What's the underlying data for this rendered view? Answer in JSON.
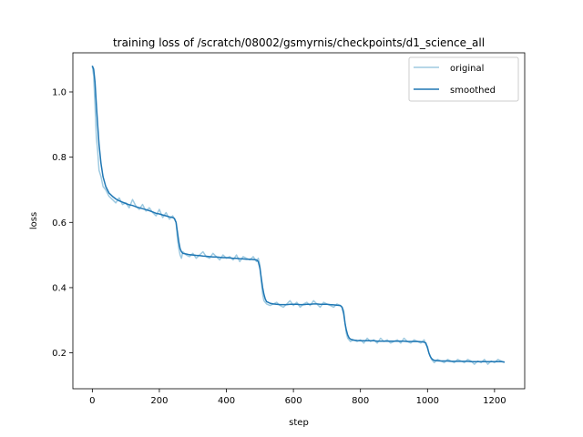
{
  "chart_data": {
    "type": "line",
    "title": "training loss of /scratch/08002/gsmyrnis/checkpoints/d1_science_all",
    "xlabel": "step",
    "ylabel": "loss",
    "xlim": [
      -58,
      1290
    ],
    "ylim": [
      0.09,
      1.12
    ],
    "x_ticks": [
      0,
      200,
      400,
      600,
      800,
      1000,
      1200
    ],
    "y_ticks": [
      0.2,
      0.4,
      0.6,
      0.8,
      1.0
    ],
    "x_tick_labels": [
      "0",
      "200",
      "400",
      "600",
      "800",
      "1000",
      "1200"
    ],
    "y_tick_labels": [
      "0.2",
      "0.4",
      "0.6",
      "0.8",
      "1.0"
    ],
    "grid": false,
    "legend_position": "upper right",
    "series": [
      {
        "name": "original",
        "color": "#9ecae1",
        "x": [
          0,
          4,
          8,
          12,
          16,
          20,
          26,
          32,
          40,
          50,
          60,
          70,
          80,
          90,
          100,
          110,
          120,
          130,
          140,
          150,
          160,
          170,
          180,
          190,
          200,
          210,
          220,
          230,
          240,
          245,
          250,
          254,
          258,
          262,
          266,
          270,
          280,
          290,
          300,
          310,
          320,
          330,
          340,
          350,
          360,
          370,
          380,
          390,
          400,
          410,
          420,
          430,
          440,
          450,
          460,
          470,
          480,
          490,
          495,
          500,
          504,
          508,
          512,
          516,
          520,
          530,
          540,
          550,
          560,
          570,
          580,
          590,
          600,
          610,
          620,
          630,
          640,
          650,
          660,
          670,
          680,
          690,
          700,
          710,
          720,
          730,
          740,
          745,
          750,
          754,
          758,
          762,
          766,
          770,
          780,
          790,
          800,
          810,
          820,
          830,
          840,
          850,
          860,
          870,
          880,
          890,
          900,
          910,
          920,
          930,
          940,
          950,
          960,
          970,
          980,
          990,
          995,
          1000,
          1004,
          1008,
          1012,
          1016,
          1020,
          1030,
          1040,
          1050,
          1060,
          1070,
          1080,
          1090,
          1100,
          1110,
          1120,
          1130,
          1140,
          1150,
          1160,
          1170,
          1180,
          1190,
          1200,
          1210,
          1220,
          1230
        ],
        "y": [
          1.08,
          1.05,
          0.96,
          0.86,
          0.82,
          0.76,
          0.74,
          0.71,
          0.7,
          0.68,
          0.67,
          0.66,
          0.675,
          0.655,
          0.66,
          0.645,
          0.67,
          0.65,
          0.64,
          0.655,
          0.635,
          0.645,
          0.63,
          0.62,
          0.64,
          0.615,
          0.63,
          0.61,
          0.62,
          0.61,
          0.6,
          0.55,
          0.52,
          0.5,
          0.49,
          0.51,
          0.5,
          0.495,
          0.505,
          0.49,
          0.5,
          0.51,
          0.495,
          0.49,
          0.505,
          0.495,
          0.485,
          0.5,
          0.49,
          0.495,
          0.485,
          0.5,
          0.48,
          0.495,
          0.49,
          0.485,
          0.495,
          0.48,
          0.49,
          0.47,
          0.42,
          0.38,
          0.36,
          0.355,
          0.35,
          0.345,
          0.35,
          0.355,
          0.345,
          0.34,
          0.35,
          0.36,
          0.345,
          0.355,
          0.34,
          0.35,
          0.355,
          0.345,
          0.36,
          0.35,
          0.34,
          0.355,
          0.35,
          0.345,
          0.34,
          0.35,
          0.345,
          0.34,
          0.33,
          0.29,
          0.26,
          0.245,
          0.24,
          0.235,
          0.24,
          0.235,
          0.24,
          0.23,
          0.245,
          0.235,
          0.24,
          0.23,
          0.245,
          0.235,
          0.24,
          0.23,
          0.235,
          0.24,
          0.23,
          0.245,
          0.235,
          0.23,
          0.24,
          0.235,
          0.23,
          0.24,
          0.225,
          0.22,
          0.2,
          0.19,
          0.18,
          0.175,
          0.17,
          0.18,
          0.175,
          0.17,
          0.18,
          0.175,
          0.17,
          0.18,
          0.175,
          0.17,
          0.18,
          0.175,
          0.165,
          0.175,
          0.17,
          0.18,
          0.165,
          0.175,
          0.17,
          0.18,
          0.175,
          0.17
        ]
      },
      {
        "name": "smoothed",
        "color": "#1f77b4",
        "x": [
          0,
          4,
          8,
          12,
          16,
          20,
          26,
          32,
          40,
          50,
          60,
          70,
          80,
          90,
          100,
          110,
          120,
          130,
          140,
          150,
          160,
          170,
          180,
          190,
          200,
          210,
          220,
          230,
          240,
          245,
          250,
          254,
          258,
          262,
          266,
          270,
          280,
          290,
          300,
          310,
          320,
          330,
          340,
          350,
          360,
          370,
          380,
          390,
          400,
          410,
          420,
          430,
          440,
          450,
          460,
          470,
          480,
          490,
          495,
          500,
          504,
          508,
          512,
          516,
          520,
          530,
          540,
          550,
          560,
          570,
          580,
          590,
          600,
          610,
          620,
          630,
          640,
          650,
          660,
          670,
          680,
          690,
          700,
          710,
          720,
          730,
          740,
          745,
          750,
          754,
          758,
          762,
          766,
          770,
          780,
          790,
          800,
          810,
          820,
          830,
          840,
          850,
          860,
          870,
          880,
          890,
          900,
          910,
          920,
          930,
          940,
          950,
          960,
          970,
          980,
          990,
          995,
          1000,
          1004,
          1008,
          1012,
          1016,
          1020,
          1030,
          1040,
          1050,
          1060,
          1070,
          1080,
          1090,
          1100,
          1110,
          1120,
          1130,
          1140,
          1150,
          1160,
          1170,
          1180,
          1190,
          1200,
          1210,
          1220,
          1230
        ],
        "y": [
          1.08,
          1.07,
          1.03,
          0.96,
          0.9,
          0.84,
          0.78,
          0.74,
          0.71,
          0.69,
          0.68,
          0.672,
          0.666,
          0.662,
          0.658,
          0.654,
          0.652,
          0.648,
          0.645,
          0.642,
          0.639,
          0.636,
          0.632,
          0.628,
          0.626,
          0.623,
          0.62,
          0.617,
          0.615,
          0.612,
          0.6,
          0.57,
          0.54,
          0.52,
          0.51,
          0.505,
          0.503,
          0.501,
          0.5,
          0.499,
          0.498,
          0.497,
          0.496,
          0.495,
          0.494,
          0.494,
          0.493,
          0.492,
          0.492,
          0.491,
          0.49,
          0.49,
          0.489,
          0.488,
          0.487,
          0.487,
          0.486,
          0.485,
          0.48,
          0.46,
          0.43,
          0.4,
          0.38,
          0.365,
          0.357,
          0.352,
          0.35,
          0.349,
          0.348,
          0.348,
          0.348,
          0.349,
          0.349,
          0.349,
          0.348,
          0.348,
          0.349,
          0.349,
          0.35,
          0.35,
          0.349,
          0.349,
          0.349,
          0.348,
          0.347,
          0.346,
          0.345,
          0.34,
          0.32,
          0.29,
          0.27,
          0.255,
          0.246,
          0.242,
          0.239,
          0.238,
          0.237,
          0.237,
          0.237,
          0.237,
          0.237,
          0.236,
          0.236,
          0.236,
          0.236,
          0.236,
          0.236,
          0.236,
          0.236,
          0.236,
          0.235,
          0.235,
          0.235,
          0.235,
          0.234,
          0.233,
          0.23,
          0.215,
          0.2,
          0.19,
          0.183,
          0.179,
          0.177,
          0.176,
          0.175,
          0.175,
          0.175,
          0.174,
          0.174,
          0.174,
          0.174,
          0.174,
          0.174,
          0.173,
          0.173,
          0.173,
          0.173,
          0.173,
          0.173,
          0.173,
          0.173,
          0.173,
          0.173,
          0.172
        ]
      }
    ]
  }
}
